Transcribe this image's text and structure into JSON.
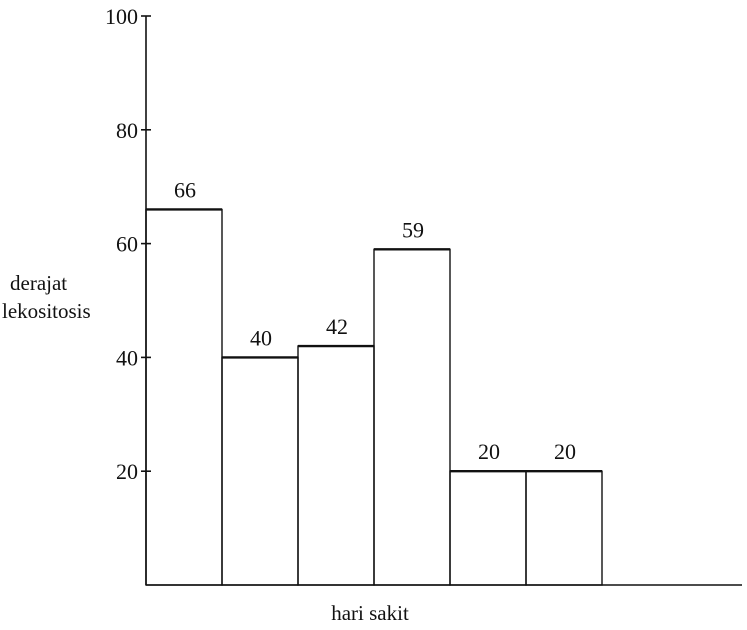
{
  "chart_data": {
    "type": "bar",
    "categories": [
      "",
      "",
      "",
      "",
      "",
      ""
    ],
    "values": [
      66,
      40,
      42,
      59,
      20,
      20
    ],
    "data_labels": [
      "66",
      "40",
      "42",
      "59",
      "20",
      "20"
    ],
    "title": "",
    "xlabel": "hari sakit",
    "ylabel_lines": [
      "derajat",
      "lekositosis"
    ],
    "ylim": [
      0,
      100
    ],
    "yticks": [
      20,
      40,
      60,
      80,
      100
    ],
    "ytick_labels": [
      "20",
      "40",
      "60",
      "80",
      "100"
    ],
    "grid": false,
    "legend": "none",
    "bar_style": "outline",
    "colors": {
      "ink": "#111111",
      "background": "#ffffff"
    }
  }
}
